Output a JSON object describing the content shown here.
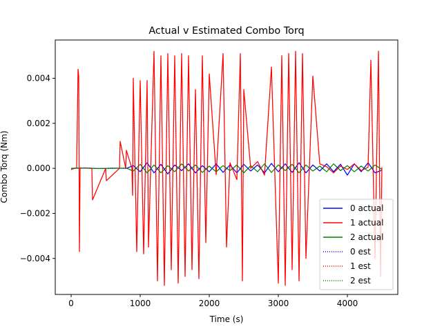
{
  "chart_data": {
    "type": "line",
    "title": "Actual v Estimated Combo Torq",
    "xlabel": "Time (s)",
    "ylabel": "Combo Torq (Nm)",
    "xlim": [
      -230,
      4730
    ],
    "ylim": [
      -0.0056,
      0.0057
    ],
    "xticks": [
      0,
      1000,
      2000,
      3000,
      4000
    ],
    "xtick_labels": [
      "0",
      "1000",
      "2000",
      "3000",
      "4000"
    ],
    "yticks": [
      -0.004,
      -0.002,
      0.0,
      0.002,
      0.004
    ],
    "ytick_labels": [
      "−0.004",
      "−0.002",
      "0.000",
      "0.002",
      "0.004"
    ],
    "grid": false,
    "legend_position": "lower-right",
    "colors": {
      "0": "#0000ff",
      "1": "#ff0000",
      "2": "#008000"
    },
    "series": [
      {
        "name": "0 actual",
        "color": "#0000ff",
        "style": "solid",
        "x": [
          0,
          200,
          400,
          600,
          800,
          900,
          1000,
          1100,
          1200,
          1300,
          1400,
          1500,
          1600,
          1700,
          1800,
          1900,
          2000,
          2100,
          2200,
          2300,
          2400,
          2500,
          2600,
          2700,
          2800,
          2900,
          3000,
          3100,
          3200,
          3300,
          3400,
          3500,
          3600,
          3700,
          3800,
          3900,
          4000,
          4100,
          4200,
          4300,
          4400,
          4500
        ],
        "y": [
          0.0,
          2e-05,
          -1e-05,
          1e-05,
          0.0,
          0.00012,
          -0.00015,
          0.00025,
          -0.0002,
          0.00018,
          -0.00025,
          0.00015,
          -0.0001,
          0.0002,
          -0.0002,
          0.00012,
          -0.00015,
          0.0002,
          -0.00018,
          0.00015,
          -0.0002,
          0.00018,
          -0.00012,
          0.00015,
          -0.0002,
          0.00022,
          -0.00015,
          0.0002,
          -0.00018,
          0.00025,
          -0.0002,
          0.00015,
          -0.00012,
          0.0002,
          -0.00015,
          0.00018,
          -0.0003,
          0.0002,
          -0.00015,
          0.00025,
          -0.0002,
          -8e-05
        ]
      },
      {
        "name": "1 actual",
        "color": "#ff0000",
        "style": "solid",
        "x": [
          0,
          80,
          100,
          110,
          120,
          130,
          300,
          310,
          500,
          510,
          700,
          710,
          790,
          800,
          880,
          890,
          900,
          950,
          1000,
          1050,
          1100,
          1120,
          1200,
          1250,
          1300,
          1350,
          1400,
          1450,
          1500,
          1550,
          1600,
          1650,
          1700,
          1750,
          1800,
          1850,
          1900,
          1950,
          2000,
          2100,
          2200,
          2250,
          2300,
          2400,
          2450,
          2480,
          2500,
          2600,
          2700,
          2800,
          2900,
          3000,
          3050,
          3100,
          3150,
          3200,
          3250,
          3300,
          3350,
          3400,
          3500,
          3600,
          3700,
          3800,
          3900,
          4000,
          4100,
          4200,
          4300,
          4340,
          4400,
          4450,
          4480,
          4500
        ],
        "y": [
          -5e-05,
          3e-05,
          0.0044,
          0.0041,
          -0.0037,
          2e-05,
          0.0,
          -0.0014,
          0.0,
          -0.00055,
          0.0,
          0.0012,
          0.0,
          0.0008,
          0.0,
          -0.0012,
          0.004,
          -0.0037,
          0.0039,
          -0.0038,
          0.0039,
          -0.0035,
          0.0052,
          -0.005,
          0.005,
          -0.0052,
          0.0051,
          -0.0045,
          0.005,
          -0.0051,
          0.0051,
          -0.0048,
          0.005,
          -0.0045,
          0.0035,
          -0.0049,
          0.005,
          -0.0033,
          0.0042,
          -0.00028,
          0.0051,
          -0.0035,
          0.00025,
          -0.0005,
          0.0051,
          -0.005,
          0.0035,
          0.0,
          0.0003,
          -0.0003,
          0.0045,
          -0.0051,
          0.005,
          -0.0052,
          0.0051,
          -0.0045,
          0.0052,
          -0.005,
          0.0051,
          -0.004,
          0.0041,
          0.0002,
          7e-05,
          -0.0002,
          0.0001,
          -5e-05,
          0.0002,
          -0.0001,
          5e-05,
          0.0048,
          -0.004,
          0.0052,
          -0.0048,
          5e-05
        ]
      },
      {
        "name": "2 actual",
        "color": "#008000",
        "style": "solid",
        "x": [
          0,
          200,
          400,
          600,
          800,
          900,
          1000,
          1100,
          1200,
          1300,
          1400,
          1500,
          1600,
          1700,
          1800,
          1900,
          2000,
          2100,
          2200,
          2300,
          2400,
          2500,
          2600,
          2700,
          2800,
          2900,
          3000,
          3100,
          3200,
          3300,
          3400,
          3500,
          3600,
          3700,
          3800,
          3900,
          4000,
          4100,
          4200,
          4300,
          4400,
          4500
        ],
        "y": [
          0.0,
          1e-05,
          -1e-05,
          0.0,
          1e-05,
          -0.00012,
          0.00018,
          -0.0002,
          0.00015,
          -0.0002,
          0.00012,
          -0.00015,
          0.0002,
          -0.00012,
          0.00015,
          -0.00018,
          0.0001,
          -0.00015,
          0.00012,
          -0.0001,
          0.00015,
          -0.0002,
          0.00012,
          -0.00015,
          0.0002,
          -0.00018,
          0.00015,
          -0.0001,
          0.00018,
          -0.0002,
          0.00015,
          -0.00012,
          0.0001,
          -0.00015,
          0.0002,
          -0.0001,
          0.00012,
          -0.00015,
          0.0001,
          -0.00012,
          0.00015,
          -5e-05
        ]
      },
      {
        "name": "0 est",
        "color": "#0000ff",
        "style": "dotted",
        "same_as": "0 actual"
      },
      {
        "name": "1 est",
        "color": "#ff0000",
        "style": "dotted",
        "same_as": "1 actual"
      },
      {
        "name": "2 est",
        "color": "#008000",
        "style": "dotted",
        "same_as": "2 actual"
      }
    ]
  }
}
